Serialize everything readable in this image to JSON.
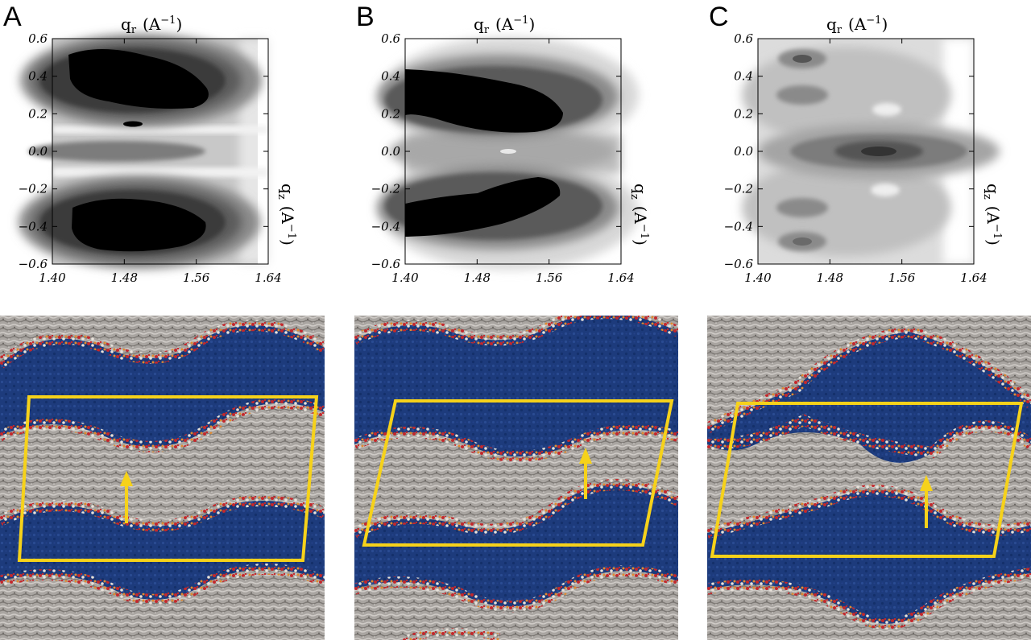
{
  "figure": {
    "panels": [
      {
        "letter": "A",
        "qr_label": "q",
        "qr_sub": "r",
        "unit": "(A",
        "unit_sup": "−1",
        "unit_close": ")",
        "qz_label": "q",
        "qz_sub": "z"
      },
      {
        "letter": "B",
        "qr_label": "q",
        "qr_sub": "r",
        "unit": "(A",
        "unit_sup": "−1",
        "unit_close": ")",
        "qz_label": "q",
        "qz_sub": "z"
      },
      {
        "letter": "C",
        "qr_label": "q",
        "qr_sub": "r",
        "unit": "(A",
        "unit_sup": "−1",
        "unit_close": ")",
        "qz_label": "q",
        "qz_sub": "z"
      }
    ],
    "x_ticks": [
      "1.40",
      "1.48",
      "1.56",
      "1.64"
    ],
    "y_ticks": [
      "0.6",
      "0.4",
      "0.2",
      "0.0",
      "−0.2",
      "−0.4",
      "−0.6"
    ],
    "colors": {
      "lipid_gray": "#a8a4a0",
      "water_blue": "#1c3a7c",
      "headgroup_red": "#c0282c",
      "headgroup_orange": "#e08a30",
      "box_yellow": "#f6d21a"
    }
  },
  "chart_data": [
    {
      "type": "heatmap",
      "panel": "A",
      "xlim": [
        1.4,
        1.64
      ],
      "ylim": [
        -0.6,
        0.6
      ],
      "x_ticks": [
        1.4,
        1.48,
        1.56,
        1.64
      ],
      "y_ticks": [
        -0.6,
        -0.4,
        -0.2,
        0.0,
        0.2,
        0.4,
        0.6
      ],
      "peaks": [
        {
          "qr": 1.47,
          "qz": 0.4,
          "level": "max"
        },
        {
          "qr": 1.47,
          "qz": -0.4,
          "level": "max"
        },
        {
          "qr": 1.48,
          "qz": 0.0,
          "level": "medium"
        }
      ]
    },
    {
      "type": "heatmap",
      "panel": "B",
      "xlim": [
        1.4,
        1.64
      ],
      "ylim": [
        -0.6,
        0.6
      ],
      "x_ticks": [
        1.4,
        1.48,
        1.56,
        1.64
      ],
      "y_ticks": [
        -0.6,
        -0.4,
        -0.2,
        0.0,
        0.2,
        0.4,
        0.6
      ],
      "peaks": [
        {
          "qr": 1.48,
          "qz": 0.3,
          "level": "max"
        },
        {
          "qr": 1.49,
          "qz": -0.25,
          "level": "max"
        }
      ]
    },
    {
      "type": "heatmap",
      "panel": "C",
      "xlim": [
        1.4,
        1.64
      ],
      "ylim": [
        -0.6,
        0.6
      ],
      "x_ticks": [
        1.4,
        1.48,
        1.56,
        1.64
      ],
      "y_ticks": [
        -0.6,
        -0.4,
        -0.2,
        0.0,
        0.2,
        0.4,
        0.6
      ],
      "peaks": [
        {
          "qr": 1.52,
          "qz": 0.0,
          "level": "max"
        },
        {
          "qr": 1.46,
          "qz": 0.48,
          "level": "medium"
        },
        {
          "qr": 1.46,
          "qz": -0.48,
          "level": "medium"
        },
        {
          "qr": 1.46,
          "qz": 0.3,
          "level": "medium"
        },
        {
          "qr": 1.46,
          "qz": -0.3,
          "level": "medium"
        }
      ]
    }
  ]
}
